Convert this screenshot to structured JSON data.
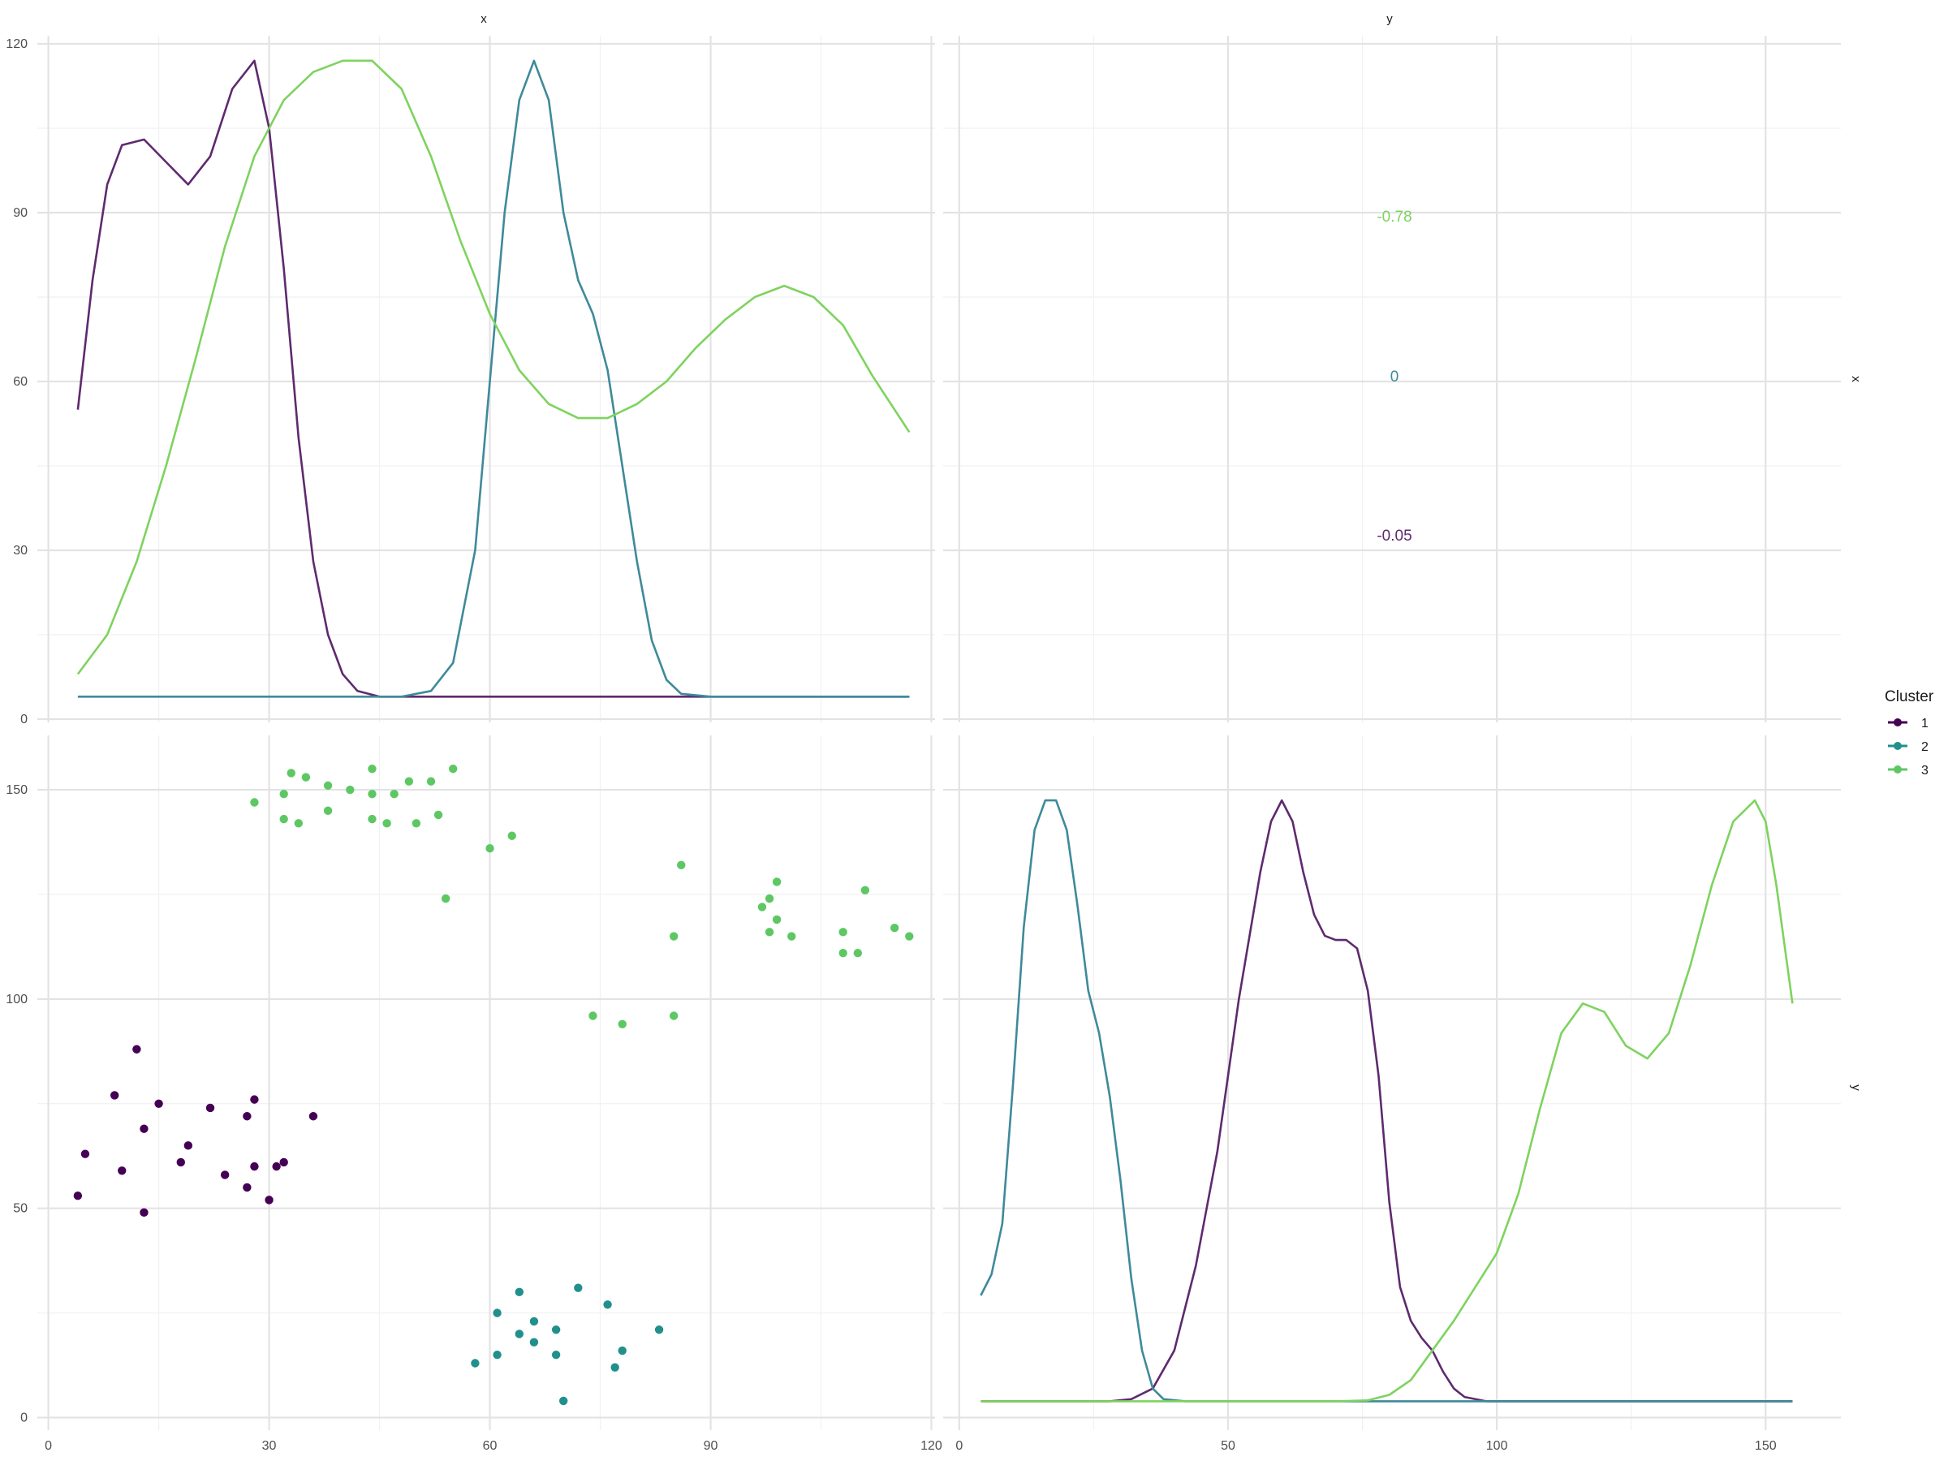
{
  "chart_data": {
    "type": "scatter",
    "title": "",
    "variables": [
      "x",
      "y"
    ],
    "x_ticks": [
      "0",
      "30",
      "60",
      "90",
      "120"
    ],
    "y_ticks_x": [
      "0",
      "30",
      "60",
      "90",
      "120"
    ],
    "y_ticks_y": [
      "0",
      "50",
      "100",
      "150"
    ],
    "x_ticks_y": [
      "0",
      "50",
      "100",
      "150"
    ],
    "xlim_x": [
      -1.5,
      120.5
    ],
    "xlim_y": [
      -3,
      164
    ],
    "ylim_x_density": [
      0,
      120
    ],
    "ylim_y": [
      -3,
      163
    ],
    "grid": true,
    "legend": {
      "title": "Cluster",
      "position": "right",
      "entries": [
        "1",
        "2",
        "3"
      ]
    },
    "colors": {
      "1": "#440154",
      "2": "#21908C",
      "3": "#5DC863",
      "density_1": "#5E2A6E",
      "density_2": "#3E8A9A",
      "density_3": "#7ED35E"
    },
    "correlations": [
      {
        "cluster": "3",
        "value": "-0.78"
      },
      {
        "cluster": "2",
        "value": "0"
      },
      {
        "cluster": "1",
        "value": "-0.05"
      }
    ],
    "scatter_points": {
      "1": [
        [
          4,
          53
        ],
        [
          5,
          63
        ],
        [
          9,
          77
        ],
        [
          10,
          59
        ],
        [
          12,
          88
        ],
        [
          13,
          69
        ],
        [
          13,
          49
        ],
        [
          15,
          75
        ],
        [
          18,
          61
        ],
        [
          19,
          65
        ],
        [
          22,
          74
        ],
        [
          24,
          58
        ],
        [
          27,
          55
        ],
        [
          27,
          72
        ],
        [
          28,
          76
        ],
        [
          28,
          60
        ],
        [
          30,
          52
        ],
        [
          31,
          60
        ],
        [
          32,
          61
        ],
        [
          36,
          72
        ]
      ],
      "2": [
        [
          58,
          13
        ],
        [
          61,
          25
        ],
        [
          61,
          15
        ],
        [
          64,
          30
        ],
        [
          64,
          20
        ],
        [
          66,
          23
        ],
        [
          66,
          18
        ],
        [
          69,
          21
        ],
        [
          69,
          15
        ],
        [
          70,
          4
        ],
        [
          72,
          31
        ],
        [
          76,
          27
        ],
        [
          77,
          12
        ],
        [
          78,
          16
        ],
        [
          83,
          21
        ]
      ],
      "3": [
        [
          28,
          147
        ],
        [
          32,
          149
        ],
        [
          32,
          143
        ],
        [
          33,
          154
        ],
        [
          34,
          142
        ],
        [
          35,
          153
        ],
        [
          38,
          151
        ],
        [
          38,
          145
        ],
        [
          41,
          150
        ],
        [
          44,
          155
        ],
        [
          44,
          149
        ],
        [
          44,
          143
        ],
        [
          46,
          142
        ],
        [
          47,
          149
        ],
        [
          49,
          152
        ],
        [
          50,
          142
        ],
        [
          52,
          152
        ],
        [
          53,
          144
        ],
        [
          54,
          124
        ],
        [
          55,
          155
        ],
        [
          60,
          136
        ],
        [
          63,
          139
        ],
        [
          74,
          96
        ],
        [
          78,
          94
        ],
        [
          85,
          115
        ],
        [
          85,
          96
        ],
        [
          86,
          132
        ],
        [
          97,
          122
        ],
        [
          98,
          124
        ],
        [
          98,
          116
        ],
        [
          99,
          128
        ],
        [
          99,
          119
        ],
        [
          101,
          115
        ],
        [
          108,
          116
        ],
        [
          108,
          111
        ],
        [
          110,
          111
        ],
        [
          111,
          126
        ],
        [
          115,
          117
        ],
        [
          117,
          115
        ]
      ]
    },
    "density_x": {
      "1": [
        [
          4,
          55
        ],
        [
          6,
          78
        ],
        [
          8,
          95
        ],
        [
          10,
          102
        ],
        [
          13,
          103
        ],
        [
          16,
          99
        ],
        [
          19,
          95
        ],
        [
          22,
          100
        ],
        [
          25,
          112
        ],
        [
          28,
          117
        ],
        [
          30,
          105
        ],
        [
          32,
          80
        ],
        [
          34,
          50
        ],
        [
          36,
          28
        ],
        [
          38,
          15
        ],
        [
          40,
          8
        ],
        [
          42,
          5
        ],
        [
          45,
          4
        ],
        [
          117,
          4
        ]
      ],
      "2": [
        [
          4,
          4
        ],
        [
          48,
          4
        ],
        [
          52,
          5
        ],
        [
          55,
          10
        ],
        [
          58,
          30
        ],
        [
          60,
          60
        ],
        [
          62,
          90
        ],
        [
          64,
          110
        ],
        [
          66,
          117
        ],
        [
          68,
          110
        ],
        [
          70,
          90
        ],
        [
          72,
          78
        ],
        [
          74,
          72
        ],
        [
          76,
          62
        ],
        [
          78,
          45
        ],
        [
          80,
          28
        ],
        [
          82,
          14
        ],
        [
          84,
          7
        ],
        [
          86,
          4.5
        ],
        [
          90,
          4
        ],
        [
          117,
          4
        ]
      ],
      "3": [
        [
          4,
          8
        ],
        [
          8,
          15
        ],
        [
          12,
          28
        ],
        [
          16,
          45
        ],
        [
          20,
          64
        ],
        [
          24,
          84
        ],
        [
          28,
          100
        ],
        [
          32,
          110
        ],
        [
          36,
          115
        ],
        [
          40,
          117
        ],
        [
          44,
          117
        ],
        [
          48,
          112
        ],
        [
          52,
          100
        ],
        [
          56,
          85
        ],
        [
          60,
          72
        ],
        [
          64,
          62
        ],
        [
          68,
          56
        ],
        [
          72,
          53.5
        ],
        [
          76,
          53.5
        ],
        [
          80,
          56
        ],
        [
          84,
          60
        ],
        [
          88,
          66
        ],
        [
          92,
          71
        ],
        [
          96,
          75
        ],
        [
          100,
          77
        ],
        [
          104,
          75
        ],
        [
          108,
          70
        ],
        [
          112,
          61
        ],
        [
          117,
          51
        ]
      ]
    },
    "density_y": {
      "1": [
        [
          4,
          3
        ],
        [
          28,
          3
        ],
        [
          32,
          3.5
        ],
        [
          36,
          6
        ],
        [
          40,
          15
        ],
        [
          44,
          35
        ],
        [
          48,
          62
        ],
        [
          52,
          98
        ],
        [
          56,
          128
        ],
        [
          58,
          140
        ],
        [
          60,
          145
        ],
        [
          62,
          140
        ],
        [
          64,
          128
        ],
        [
          66,
          118
        ],
        [
          68,
          113
        ],
        [
          70,
          112
        ],
        [
          72,
          112
        ],
        [
          74,
          110
        ],
        [
          76,
          100
        ],
        [
          78,
          80
        ],
        [
          80,
          50
        ],
        [
          82,
          30
        ],
        [
          84,
          22
        ],
        [
          86,
          18
        ],
        [
          88,
          15
        ],
        [
          90,
          10
        ],
        [
          92,
          6
        ],
        [
          94,
          4
        ],
        [
          98,
          3
        ],
        [
          155,
          3
        ]
      ],
      "2": [
        [
          4,
          28
        ],
        [
          6,
          33
        ],
        [
          8,
          45
        ],
        [
          10,
          78
        ],
        [
          12,
          115
        ],
        [
          14,
          138
        ],
        [
          16,
          145
        ],
        [
          18,
          145
        ],
        [
          20,
          138
        ],
        [
          22,
          120
        ],
        [
          24,
          100
        ],
        [
          26,
          90
        ],
        [
          28,
          75
        ],
        [
          30,
          55
        ],
        [
          32,
          32
        ],
        [
          34,
          15
        ],
        [
          36,
          6
        ],
        [
          38,
          3.5
        ],
        [
          42,
          3
        ],
        [
          155,
          3
        ]
      ],
      "3": [
        [
          4,
          3
        ],
        [
          70,
          3
        ],
        [
          76,
          3.2
        ],
        [
          80,
          4.5
        ],
        [
          84,
          8
        ],
        [
          88,
          15
        ],
        [
          92,
          22
        ],
        [
          96,
          30
        ],
        [
          100,
          38
        ],
        [
          104,
          52
        ],
        [
          108,
          72
        ],
        [
          112,
          90
        ],
        [
          116,
          97
        ],
        [
          120,
          95
        ],
        [
          124,
          87
        ],
        [
          128,
          84
        ],
        [
          132,
          90
        ],
        [
          136,
          106
        ],
        [
          140,
          125
        ],
        [
          144,
          140
        ],
        [
          148,
          145
        ],
        [
          150,
          140
        ],
        [
          152,
          125
        ],
        [
          155,
          97
        ]
      ]
    }
  }
}
